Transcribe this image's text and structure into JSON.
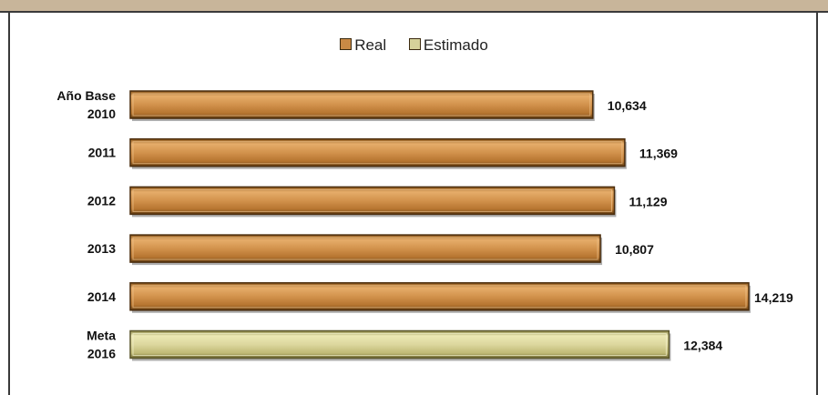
{
  "chart_data": {
    "type": "bar",
    "orientation": "horizontal",
    "legend": {
      "placement": "top-center",
      "entries": [
        {
          "name": "Real",
          "color": "#c98a45"
        },
        {
          "name": "Estimado",
          "color": "#d6d29a"
        }
      ]
    },
    "categories": [
      [
        "Año Base",
        "2010"
      ],
      [
        "2011"
      ],
      [
        "2012"
      ],
      [
        "2013"
      ],
      [
        "2014"
      ],
      [
        "Meta",
        "2016"
      ]
    ],
    "values": [
      10634,
      11369,
      11129,
      10807,
      14219,
      12384
    ],
    "value_labels": [
      "10,634",
      "11,369",
      "11,129",
      "10,807",
      "14,219",
      "12,384"
    ],
    "series_of_bar": [
      "Real",
      "Real",
      "Real",
      "Real",
      "Real",
      "Estimado"
    ],
    "xlim": [
      0,
      14500
    ],
    "grid": false
  }
}
